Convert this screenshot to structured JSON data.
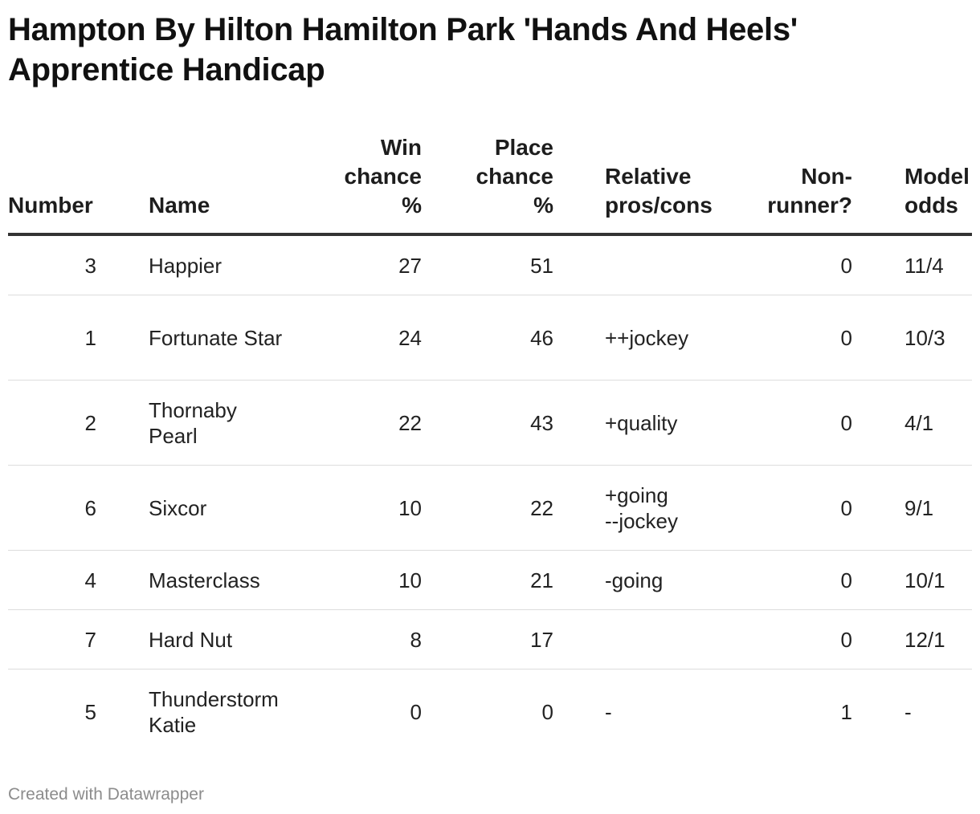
{
  "title": "Hampton By Hilton Hamilton Park 'Hands And Heels' Apprentice Handicap",
  "footer": "Created with Datawrapper",
  "columns": {
    "number": "Number",
    "name": "Name",
    "win": "Win chance %",
    "place": "Place chance %",
    "pros": "Relative pros/cons",
    "nonrunner": "Non-runner?",
    "odds": "Model odds"
  },
  "rows": [
    {
      "number": "3",
      "name": "Happier",
      "win": "27",
      "place": "51",
      "pros1": "",
      "pros2": "",
      "nonrunner": "0",
      "odds": "11/4"
    },
    {
      "number": "1",
      "name": "Fortunate Star",
      "win": "24",
      "place": "46",
      "pros1": "++jockey",
      "pros2": "",
      "nonrunner": "0",
      "odds": "10/3"
    },
    {
      "number": "2",
      "name": "Thornaby Pearl",
      "win": "22",
      "place": "43",
      "pros1": "+quality",
      "pros2": "",
      "nonrunner": "0",
      "odds": "4/1"
    },
    {
      "number": "6",
      "name": "Sixcor",
      "win": "10",
      "place": "22",
      "pros1": "+going",
      "pros2": "--jockey",
      "nonrunner": "0",
      "odds": "9/1"
    },
    {
      "number": "4",
      "name": "Masterclass",
      "win": "10",
      "place": "21",
      "pros1": "-going",
      "pros2": "",
      "nonrunner": "0",
      "odds": "10/1"
    },
    {
      "number": "7",
      "name": "Hard Nut",
      "win": "8",
      "place": "17",
      "pros1": "",
      "pros2": "",
      "nonrunner": "0",
      "odds": "12/1"
    },
    {
      "number": "5",
      "name": "Thunderstorm Katie",
      "win": "0",
      "place": "0",
      "pros1": "-",
      "pros2": "",
      "nonrunner": "1",
      "odds": "-"
    }
  ],
  "chart_data": {
    "type": "table",
    "title": "Hampton By Hilton Hamilton Park 'Hands And Heels' Apprentice Handicap",
    "headers": [
      "Number",
      "Name",
      "Win chance %",
      "Place chance %",
      "Relative pros/cons",
      "Non-runner?",
      "Model odds"
    ],
    "rows": [
      [
        3,
        "Happier",
        27,
        51,
        "",
        0,
        "11/4"
      ],
      [
        1,
        "Fortunate Star",
        24,
        46,
        "++jockey",
        0,
        "10/3"
      ],
      [
        2,
        "Thornaby Pearl",
        22,
        43,
        "+quality",
        0,
        "4/1"
      ],
      [
        6,
        "Sixcor",
        10,
        22,
        "+going --jockey",
        0,
        "9/1"
      ],
      [
        4,
        "Masterclass",
        10,
        21,
        "-going",
        0,
        "10/1"
      ],
      [
        7,
        "Hard Nut",
        8,
        17,
        "",
        0,
        "12/1"
      ],
      [
        5,
        "Thunderstorm Katie",
        0,
        0,
        "-",
        1,
        "-"
      ]
    ]
  }
}
